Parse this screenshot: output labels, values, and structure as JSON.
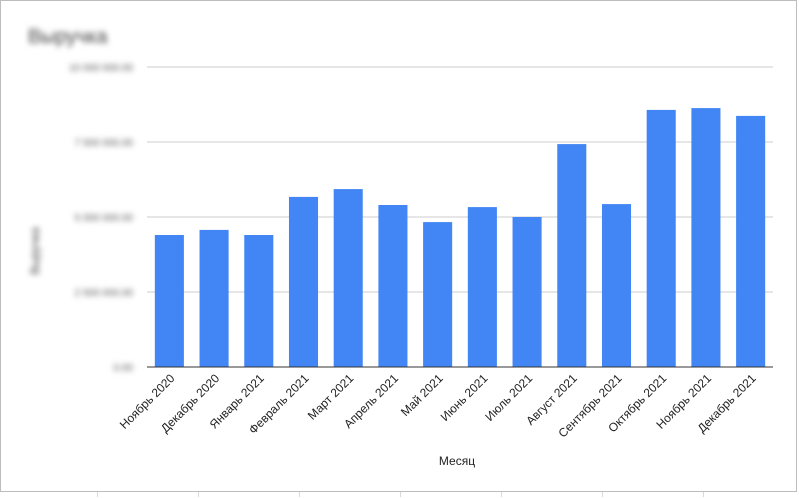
{
  "chart_data": {
    "type": "bar",
    "title": "Выручка",
    "xlabel": "Месяц",
    "ylabel": "Выручка",
    "ylim": [
      0,
      10000000
    ],
    "yticks": [
      0,
      2500000,
      5000000,
      7500000,
      10000000
    ],
    "ytick_labels": [
      "0.00",
      "2 500 000.00",
      "5 000 000.00",
      "7 500 000.00",
      "10 000 000.00"
    ],
    "grid": true,
    "legend": "none",
    "colors": {
      "bar": "#4285f4",
      "grid": "#cccccc",
      "axis": "#333333"
    },
    "categories": [
      "Ноябрь 2020",
      "Декабрь 2020",
      "Январь 2021",
      "Февраль 2021",
      "Март 2021",
      "Апрель 2021",
      "Май 2021",
      "Июнь 2021",
      "Июль 2021",
      "Август 2021",
      "Сентябрь 2021",
      "Октябрь 2021",
      "Ноябрь 2021",
      "Декабрь 2021"
    ],
    "values": [
      4400000,
      4570000,
      4400000,
      5670000,
      5930000,
      5400000,
      4830000,
      5330000,
      5000000,
      7430000,
      5430000,
      8570000,
      8630000,
      8370000
    ]
  }
}
